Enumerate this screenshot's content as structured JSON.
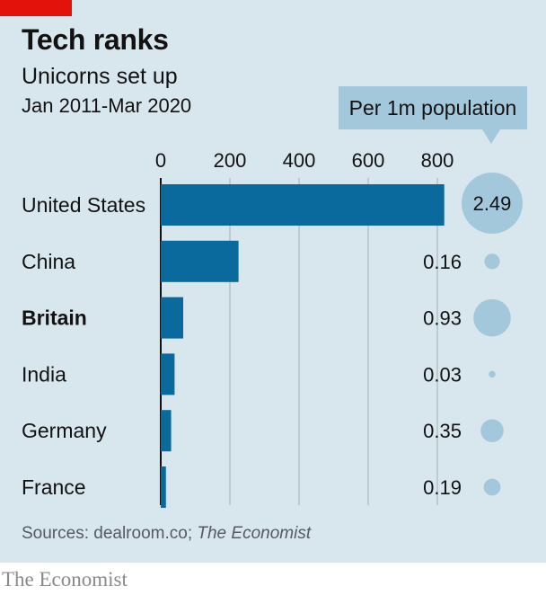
{
  "header": {
    "title": "Tech ranks",
    "subtitle": "Unicorns set up",
    "date_range": "Jan 2011-Mar 2020"
  },
  "source": {
    "prefix": "Sources: dealroom.co; ",
    "italic": "The Economist"
  },
  "footer": {
    "brand": "The Economist"
  },
  "colors": {
    "bar": "#0a6a9e",
    "bubble": "#a3c8dc",
    "grid": "#b6c2c9",
    "axis": "#121212",
    "panel": "#d8e6ee",
    "brand_red": "#e3120b"
  },
  "chart_data": {
    "type": "bar",
    "orientation": "horizontal",
    "categories": [
      "United States",
      "China",
      "Britain",
      "India",
      "Germany",
      "France"
    ],
    "highlighted_category": "Britain",
    "values": [
      820,
      225,
      65,
      40,
      30,
      15
    ],
    "xlim": [
      0,
      800
    ],
    "xticks": [
      0,
      200,
      400,
      600,
      800
    ],
    "grid": true,
    "per_capita": {
      "label": "Per 1m population",
      "values": [
        2.49,
        0.16,
        0.93,
        0.03,
        0.35,
        0.19
      ],
      "value_labels": [
        "2.49",
        "0.16",
        "0.93",
        "0.03",
        "0.35",
        "0.19"
      ]
    }
  }
}
